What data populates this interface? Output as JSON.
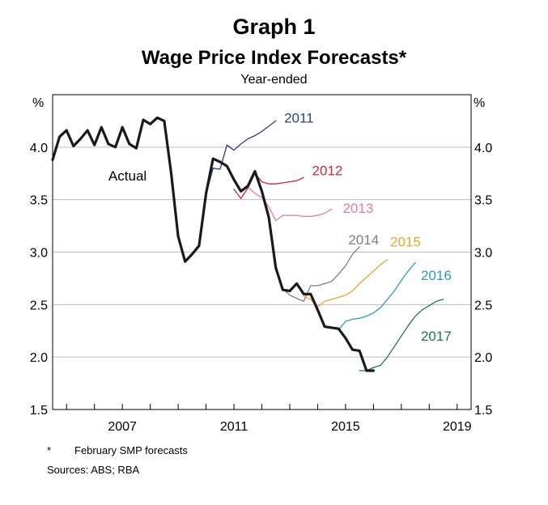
{
  "header": {
    "graph_number": "Graph 1",
    "title": "Wage Price Index Forecasts*",
    "subtitle": "Year-ended"
  },
  "footnote": {
    "symbol": "*",
    "text": "February SMP forecasts"
  },
  "sources": "Sources: ABS; RBA",
  "colors": {
    "actual": "#1a1a1a",
    "2011": "#2b3f8c",
    "2012": "#c8283c",
    "2013": "#e07aa8",
    "2014": "#7f7f7f",
    "2015": "#eaa52a",
    "2016": "#2a9bc4",
    "2017": "#1b7a3e",
    "grid": "#bdbdbd"
  },
  "chart_data": {
    "type": "line",
    "title": "Wage Price Index Forecasts*",
    "subtitle": "Year-ended",
    "ylabel_left": "%",
    "ylabel_right": "%",
    "xlim": [
      2005.0,
      2020.0
    ],
    "ylim": [
      1.5,
      4.5
    ],
    "yticks": [
      1.5,
      2.0,
      2.5,
      3.0,
      3.5,
      4.0
    ],
    "ytick_labels": [
      "1.5",
      "2.0",
      "2.5",
      "3.0",
      "3.5",
      "4.0"
    ],
    "xticks": [
      2007,
      2011,
      2015,
      2019
    ],
    "xtick_labels": [
      "2007",
      "2011",
      "2015",
      "2019"
    ],
    "grid": true,
    "series": [
      {
        "name": "Actual",
        "key": "actual",
        "label_pos": [
          2007.0,
          3.73
        ],
        "x": [
          2005.0,
          2005.25,
          2005.5,
          2005.75,
          2006.0,
          2006.25,
          2006.5,
          2006.75,
          2007.0,
          2007.25,
          2007.5,
          2007.75,
          2008.0,
          2008.25,
          2008.5,
          2008.75,
          2009.0,
          2009.25,
          2009.5,
          2009.75,
          2010.0,
          2010.25,
          2010.5,
          2010.75,
          2011.0,
          2011.25,
          2011.5,
          2011.75,
          2012.0,
          2012.25,
          2012.5,
          2012.75,
          2013.0,
          2013.25,
          2013.5,
          2013.75,
          2014.0,
          2014.25,
          2014.5,
          2014.75,
          2015.0,
          2015.25,
          2015.5,
          2015.75,
          2016.0,
          2016.25,
          2016.5
        ],
        "y": [
          3.88,
          4.1,
          4.16,
          4.01,
          4.08,
          4.16,
          4.02,
          4.19,
          4.03,
          4.0,
          4.19,
          4.03,
          3.99,
          4.26,
          4.22,
          4.28,
          4.25,
          3.75,
          3.15,
          2.91,
          2.98,
          3.06,
          3.56,
          3.89,
          3.86,
          3.82,
          3.69,
          3.58,
          3.63,
          3.77,
          3.58,
          3.33,
          2.85,
          2.64,
          2.63,
          2.7,
          2.6,
          2.6,
          2.45,
          2.29,
          2.28,
          2.27,
          2.18,
          2.07,
          2.06,
          1.87,
          1.87
        ]
      },
      {
        "name": "2011",
        "key": "2011",
        "label_pos": [
          2013.3,
          4.28
        ],
        "x": [
          2010.5,
          2010.75,
          2011.0,
          2011.25,
          2011.5,
          2011.75,
          2012.0,
          2012.25,
          2012.5,
          2012.75,
          2013.0
        ],
        "y": [
          3.55,
          3.8,
          3.79,
          4.02,
          3.97,
          4.03,
          4.08,
          4.11,
          4.15,
          4.2,
          4.25
        ]
      },
      {
        "name": "2012",
        "key": "2012",
        "label_pos": [
          2014.3,
          3.78
        ],
        "x": [
          2011.5,
          2011.75,
          2012.0,
          2012.25,
          2012.5,
          2012.75,
          2013.0,
          2013.25,
          2013.5,
          2013.75,
          2014.0
        ],
        "y": [
          3.6,
          3.51,
          3.61,
          3.75,
          3.67,
          3.65,
          3.65,
          3.66,
          3.67,
          3.68,
          3.71
        ]
      },
      {
        "name": "2013",
        "key": "2013",
        "label_pos": [
          2015.4,
          3.42
        ],
        "x": [
          2012.0,
          2012.25,
          2012.5,
          2012.75,
          2013.0,
          2013.25,
          2013.5,
          2013.75,
          2014.0,
          2014.25,
          2014.5,
          2014.75,
          2015.0
        ],
        "y": [
          3.62,
          3.56,
          3.52,
          3.43,
          3.3,
          3.35,
          3.35,
          3.35,
          3.34,
          3.34,
          3.35,
          3.37,
          3.41
        ]
      },
      {
        "name": "2014",
        "key": "2014",
        "label_pos": [
          2015.6,
          3.12
        ],
        "x": [
          2013.0,
          2013.25,
          2013.5,
          2013.75,
          2014.0,
          2014.25,
          2014.5,
          2014.75,
          2015.0,
          2015.25,
          2015.5,
          2015.75,
          2016.0
        ],
        "y": [
          2.85,
          2.65,
          2.59,
          2.56,
          2.53,
          2.68,
          2.68,
          2.7,
          2.72,
          2.79,
          2.87,
          2.98,
          3.05
        ]
      },
      {
        "name": "2015",
        "key": "2015",
        "label_pos": [
          2017.1,
          3.1
        ],
        "x": [
          2014.0,
          2014.25,
          2014.5,
          2014.75,
          2015.0,
          2015.25,
          2015.5,
          2015.75,
          2016.0,
          2016.25,
          2016.5,
          2016.75,
          2017.0
        ],
        "y": [
          2.58,
          2.55,
          2.48,
          2.53,
          2.55,
          2.57,
          2.59,
          2.63,
          2.7,
          2.76,
          2.82,
          2.88,
          2.93
        ]
      },
      {
        "name": "2016",
        "key": "2016",
        "label_pos": [
          2018.2,
          2.78
        ],
        "x": [
          2015.0,
          2015.25,
          2015.5,
          2015.75,
          2016.0,
          2016.25,
          2016.5,
          2016.75,
          2017.0,
          2017.25,
          2017.5,
          2017.75,
          2018.0
        ],
        "y": [
          2.28,
          2.26,
          2.34,
          2.36,
          2.37,
          2.39,
          2.42,
          2.47,
          2.55,
          2.63,
          2.73,
          2.82,
          2.9
        ]
      },
      {
        "name": "2017",
        "key": "2017",
        "label_pos": [
          2018.2,
          2.2
        ],
        "x": [
          2016.0,
          2016.25,
          2016.5,
          2016.75,
          2017.0,
          2017.25,
          2017.5,
          2017.75,
          2018.0,
          2018.25,
          2018.5,
          2018.75,
          2019.0
        ],
        "y": [
          1.87,
          1.87,
          1.9,
          1.92,
          2.0,
          2.1,
          2.2,
          2.3,
          2.39,
          2.45,
          2.49,
          2.53,
          2.55
        ]
      }
    ]
  }
}
